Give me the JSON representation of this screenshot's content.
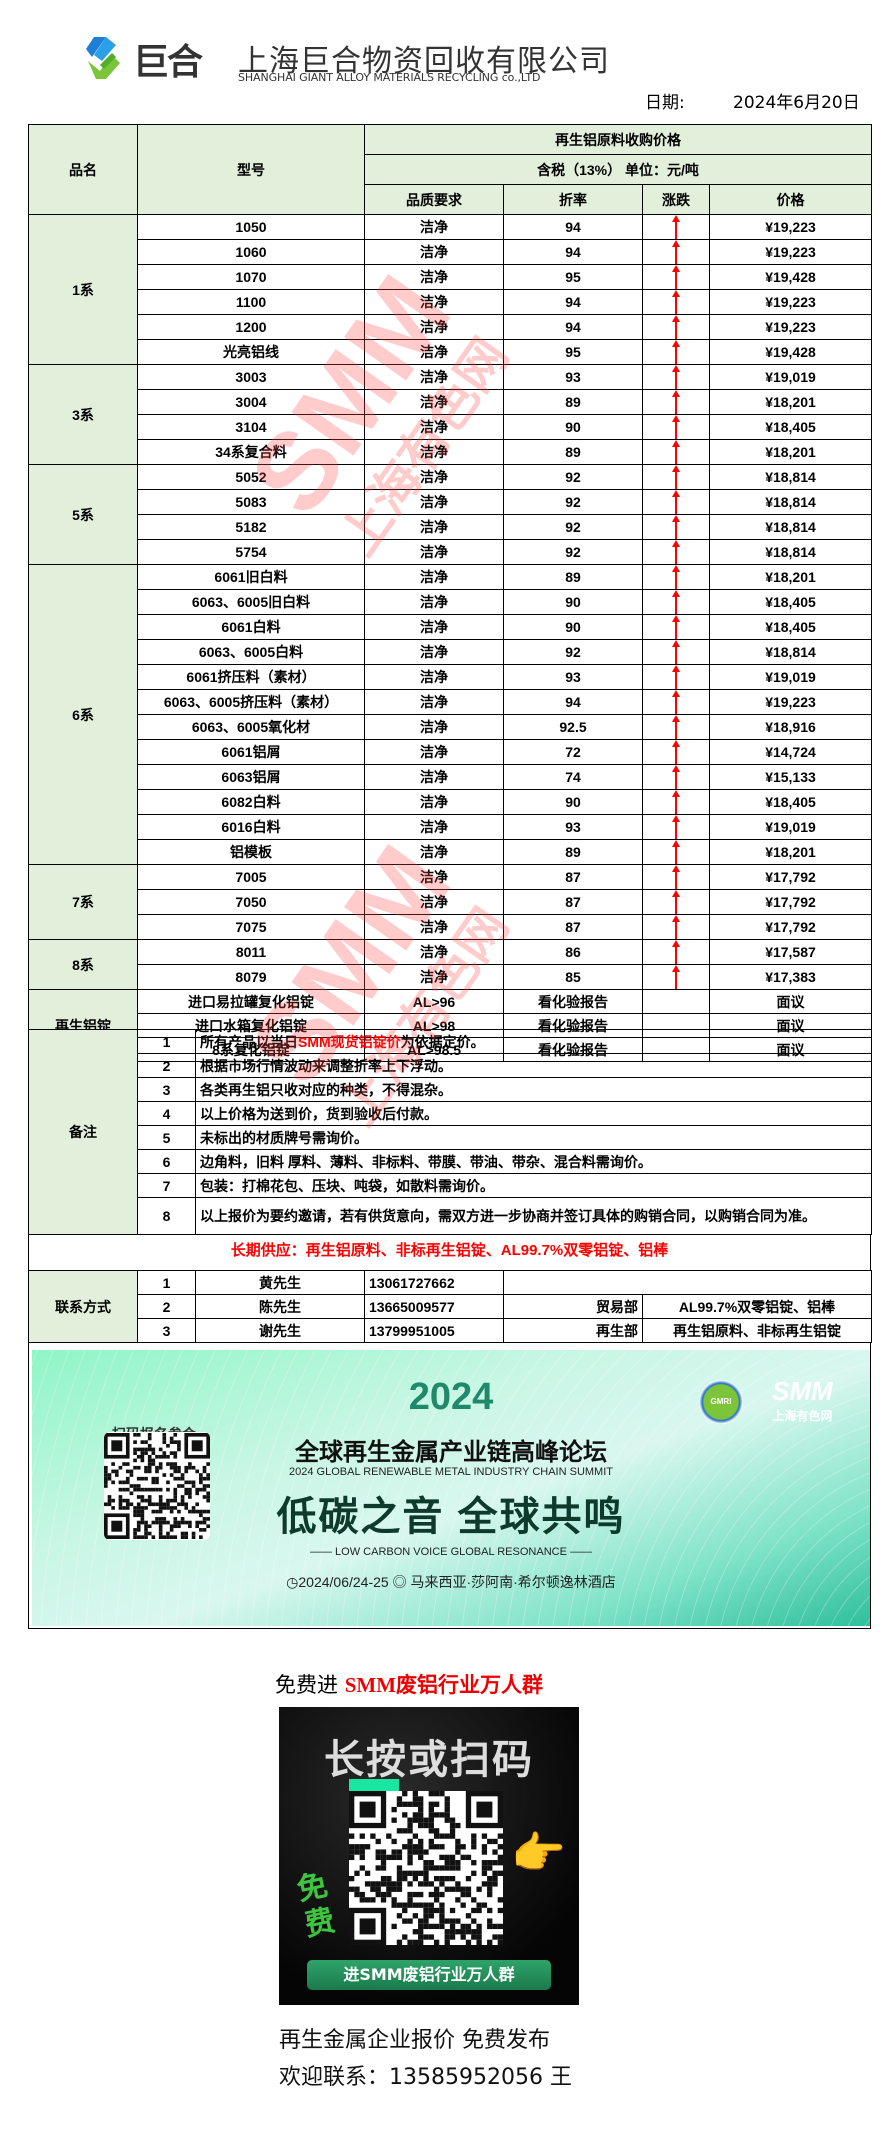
{
  "header": {
    "logo_text": "巨合",
    "company_cn": "上海巨合物资回收有限公司",
    "company_en": "SHANGHAI GIANT ALLOY MATERIALS RECYCLING co.,LTD",
    "date_label": "日期:",
    "date_value": "2024年6月20日"
  },
  "table": {
    "col_category": "品名",
    "col_model": "型号",
    "title": "再生铝原料收购价格",
    "subtitle": "含税（13%） 单位：元/吨",
    "col_quality": "品质要求",
    "col_rate": "折率",
    "col_trend": "涨跌",
    "col_price": "价格",
    "trend_color": "#ff0000",
    "groups": [
      {
        "name": "1系",
        "rows": [
          {
            "model": "1050",
            "quality": "洁净",
            "rate": "94",
            "trend": "up",
            "price": "¥19,223"
          },
          {
            "model": "1060",
            "quality": "洁净",
            "rate": "94",
            "trend": "up",
            "price": "¥19,223"
          },
          {
            "model": "1070",
            "quality": "洁净",
            "rate": "95",
            "trend": "up",
            "price": "¥19,428"
          },
          {
            "model": "1100",
            "quality": "洁净",
            "rate": "94",
            "trend": "up",
            "price": "¥19,223"
          },
          {
            "model": "1200",
            "quality": "洁净",
            "rate": "94",
            "trend": "up",
            "price": "¥19,223"
          },
          {
            "model": "光亮铝线",
            "quality": "洁净",
            "rate": "95",
            "trend": "up",
            "price": "¥19,428"
          }
        ]
      },
      {
        "name": "3系",
        "rows": [
          {
            "model": "3003",
            "quality": "洁净",
            "rate": "93",
            "trend": "up",
            "price": "¥19,019"
          },
          {
            "model": "3004",
            "quality": "洁净",
            "rate": "89",
            "trend": "up",
            "price": "¥18,201"
          },
          {
            "model": "3104",
            "quality": "洁净",
            "rate": "90",
            "trend": "up",
            "price": "¥18,405"
          },
          {
            "model": "34系复合料",
            "quality": "洁净",
            "rate": "89",
            "trend": "up",
            "price": "¥18,201"
          }
        ]
      },
      {
        "name": "5系",
        "rows": [
          {
            "model": "5052",
            "quality": "洁净",
            "rate": "92",
            "trend": "up",
            "price": "¥18,814"
          },
          {
            "model": "5083",
            "quality": "洁净",
            "rate": "92",
            "trend": "up",
            "price": "¥18,814"
          },
          {
            "model": "5182",
            "quality": "洁净",
            "rate": "92",
            "trend": "up",
            "price": "¥18,814"
          },
          {
            "model": "5754",
            "quality": "洁净",
            "rate": "92",
            "trend": "up",
            "price": "¥18,814"
          }
        ]
      },
      {
        "name": "6系",
        "rows": [
          {
            "model": "6061旧白料",
            "quality": "洁净",
            "rate": "89",
            "trend": "up",
            "price": "¥18,201"
          },
          {
            "model": "6063、6005旧白料",
            "quality": "洁净",
            "rate": "90",
            "trend": "up",
            "price": "¥18,405"
          },
          {
            "model": "6061白料",
            "quality": "洁净",
            "rate": "90",
            "trend": "up",
            "price": "¥18,405"
          },
          {
            "model": "6063、6005白料",
            "quality": "洁净",
            "rate": "92",
            "trend": "up",
            "price": "¥18,814"
          },
          {
            "model": "6061挤压料（素材）",
            "quality": "洁净",
            "rate": "93",
            "trend": "up",
            "price": "¥19,019"
          },
          {
            "model": "6063、6005挤压料（素材）",
            "quality": "洁净",
            "rate": "94",
            "trend": "up",
            "price": "¥19,223"
          },
          {
            "model": "6063、6005氧化材",
            "quality": "洁净",
            "rate": "92.5",
            "trend": "up",
            "price": "¥18,916"
          },
          {
            "model": "6061铝屑",
            "quality": "洁净",
            "rate": "72",
            "trend": "up",
            "price": "¥14,724"
          },
          {
            "model": "6063铝屑",
            "quality": "洁净",
            "rate": "74",
            "trend": "up",
            "price": "¥15,133"
          },
          {
            "model": "6082白料",
            "quality": "洁净",
            "rate": "90",
            "trend": "up",
            "price": "¥18,405"
          },
          {
            "model": "6016白料",
            "quality": "洁净",
            "rate": "93",
            "trend": "up",
            "price": "¥19,019"
          },
          {
            "model": "铝模板",
            "quality": "洁净",
            "rate": "89",
            "trend": "up",
            "price": "¥18,201"
          }
        ]
      },
      {
        "name": "7系",
        "rows": [
          {
            "model": "7005",
            "quality": "洁净",
            "rate": "87",
            "trend": "up",
            "price": "¥17,792"
          },
          {
            "model": "7050",
            "quality": "洁净",
            "rate": "87",
            "trend": "up",
            "price": "¥17,792"
          },
          {
            "model": "7075",
            "quality": "洁净",
            "rate": "87",
            "trend": "up",
            "price": "¥17,792"
          }
        ]
      },
      {
        "name": "8系",
        "rows": [
          {
            "model": "8011",
            "quality": "洁净",
            "rate": "86",
            "trend": "up",
            "price": "¥17,587"
          },
          {
            "model": "8079",
            "quality": "洁净",
            "rate": "85",
            "trend": "up",
            "price": "¥17,383"
          }
        ]
      }
    ],
    "ingot": {
      "name": "再生铝锭",
      "rows": [
        {
          "model": "进口易拉罐复化铝锭",
          "quality": "AL>96",
          "rate": "看化验报告",
          "price": "面议"
        },
        {
          "model": "进口水箱复化铝锭",
          "quality": "AL>98",
          "rate": "看化验报告",
          "price": "面议"
        },
        {
          "model": "8系复化铝锭",
          "quality": "AL>98.5",
          "rate": "看化验报告",
          "price": "面议"
        }
      ]
    }
  },
  "notes": {
    "label": "备注",
    "items": [
      {
        "n": "1",
        "pre": "所有产品以当日",
        "highlight": "SMM现货铝锭价",
        "post": "为依据定价。"
      },
      {
        "n": "2",
        "pre": "根据市场行情波动来调整折率上下浮动。"
      },
      {
        "n": "3",
        "pre": "各类再生铝只收对应的种类，不得混杂。"
      },
      {
        "n": "4",
        "pre": "以上价格为送到价，货到验收后付款。"
      },
      {
        "n": "5",
        "pre": "未标出的材质牌号需询价。"
      },
      {
        "n": "6",
        "pre": "边角料，旧料 厚料、薄料、非标料、带膜、带油、带杂、混合料需询价。"
      },
      {
        "n": "7",
        "pre": "包装：打棉花包、压块、吨袋，如散料需询价。"
      },
      {
        "n": "8",
        "pre": "以上报价为要约邀请，若有供货意向，需双方进一步协商并签订具体的购销合同，以购销合同为准。"
      }
    ]
  },
  "supply": "长期供应：再生铝原料、非标再生铝锭、AL99.7%双零铝锭、铝棒",
  "contacts": {
    "label": "联系方式",
    "rows": [
      {
        "n": "1",
        "name": "黄先生",
        "phone": "13061727662",
        "dept": "",
        "products": ""
      },
      {
        "n": "2",
        "name": "陈先生",
        "phone": "13665009577",
        "dept": "贸易部",
        "products": "AL99.7%双零铝锭、铝棒"
      },
      {
        "n": "3",
        "name": "谢先生",
        "phone": "13799951005",
        "dept": "再生部",
        "products": "再生铝原料、非标再生铝锭"
      }
    ]
  },
  "banner": {
    "scan_label": "扫码报名参会",
    "year": "2024",
    "title_cn": "全球再生金属产业链高峰论坛",
    "title_en": "2024 GLOBAL RENEWABLE METAL INDUSTRY CHAIN SUMMIT",
    "slogan": "低碳之音 全球共鸣",
    "slogan_en": "—— LOW CARBON VOICE GLOBAL RESONANCE ——",
    "date": "2024/06/24-25",
    "venue": "马来西亚·莎阿南·希尔顿逸林酒店",
    "logo_gmri": "GMRI",
    "logo_smm": "SMM",
    "logo_smm_cn": "上海有色网"
  },
  "watermark": {
    "brand": "SMM",
    "cn": "上海有色网"
  },
  "promo": {
    "heading_prefix": "免费进 ",
    "heading_highlight": "SMM废铝行业万人群",
    "image_title": "长按或扫码",
    "image_badge": "免费",
    "image_button": "进SMM废铝行业万人群",
    "footer_line1": "再生金属企业报价 免费发布",
    "footer_line2": "欢迎联系：13585952056 王"
  }
}
